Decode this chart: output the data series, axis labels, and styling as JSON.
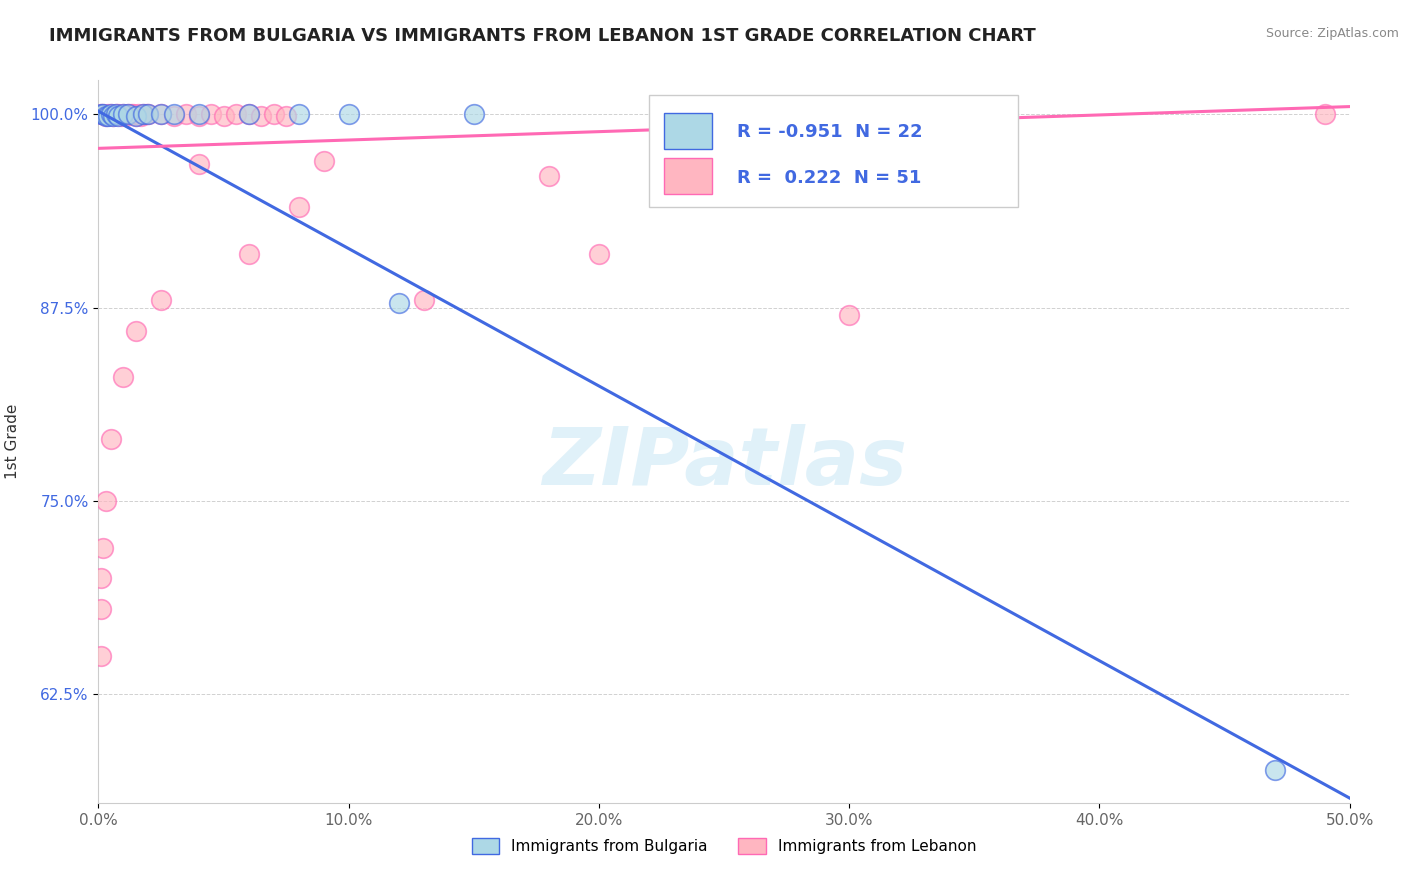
{
  "title": "IMMIGRANTS FROM BULGARIA VS IMMIGRANTS FROM LEBANON 1ST GRADE CORRELATION CHART",
  "source": "Source: ZipAtlas.com",
  "ylabel": "1st Grade",
  "legend_bottom": [
    "Immigrants from Bulgaria",
    "Immigrants from Lebanon"
  ],
  "r_bulgaria": -0.951,
  "n_bulgaria": 22,
  "r_lebanon": 0.222,
  "n_lebanon": 51,
  "xlim": [
    0.0,
    0.5
  ],
  "ylim": [
    0.555,
    1.022
  ],
  "xticks": [
    0.0,
    0.1,
    0.2,
    0.3,
    0.4,
    0.5
  ],
  "xtick_labels": [
    "0.0%",
    "10.0%",
    "20.0%",
    "30.0%",
    "40.0%",
    "50.0%"
  ],
  "yticks": [
    0.625,
    0.75,
    0.875,
    1.0
  ],
  "ytick_labels": [
    "62.5%",
    "75.0%",
    "87.5%",
    "100.0%"
  ],
  "color_bulgaria": "#ADD8E6",
  "color_lebanon": "#FFB6C1",
  "line_color_bulgaria": "#4169E1",
  "line_color_lebanon": "#FF69B4",
  "watermark": "ZIPatlas",
  "background_color": "#FFFFFF",
  "bulgaria_points": [
    [
      0.001,
      1.0
    ],
    [
      0.002,
      1.0
    ],
    [
      0.003,
      0.999
    ],
    [
      0.004,
      0.999
    ],
    [
      0.005,
      1.0
    ],
    [
      0.006,
      0.999
    ],
    [
      0.007,
      1.0
    ],
    [
      0.008,
      0.999
    ],
    [
      0.01,
      1.0
    ],
    [
      0.012,
      1.0
    ],
    [
      0.015,
      0.999
    ],
    [
      0.018,
      1.0
    ],
    [
      0.02,
      1.0
    ],
    [
      0.025,
      1.0
    ],
    [
      0.03,
      1.0
    ],
    [
      0.04,
      1.0
    ],
    [
      0.06,
      1.0
    ],
    [
      0.08,
      1.0
    ],
    [
      0.1,
      1.0
    ],
    [
      0.15,
      1.0
    ],
    [
      0.12,
      0.878
    ],
    [
      0.47,
      0.576
    ]
  ],
  "lebanon_points": [
    [
      0.001,
      1.0
    ],
    [
      0.002,
      1.0
    ],
    [
      0.003,
      0.999
    ],
    [
      0.004,
      1.0
    ],
    [
      0.005,
      1.0
    ],
    [
      0.006,
      0.999
    ],
    [
      0.007,
      1.0
    ],
    [
      0.008,
      1.0
    ],
    [
      0.009,
      0.999
    ],
    [
      0.01,
      1.0
    ],
    [
      0.011,
      0.999
    ],
    [
      0.012,
      1.0
    ],
    [
      0.013,
      1.0
    ],
    [
      0.014,
      1.0
    ],
    [
      0.015,
      0.999
    ],
    [
      0.016,
      1.0
    ],
    [
      0.017,
      0.999
    ],
    [
      0.018,
      1.0
    ],
    [
      0.019,
      1.0
    ],
    [
      0.02,
      1.0
    ],
    [
      0.025,
      1.0
    ],
    [
      0.03,
      0.999
    ],
    [
      0.035,
      1.0
    ],
    [
      0.04,
      0.999
    ],
    [
      0.045,
      1.0
    ],
    [
      0.05,
      0.999
    ],
    [
      0.055,
      1.0
    ],
    [
      0.06,
      1.0
    ],
    [
      0.065,
      0.999
    ],
    [
      0.07,
      1.0
    ],
    [
      0.075,
      0.999
    ],
    [
      0.04,
      0.968
    ],
    [
      0.09,
      0.97
    ],
    [
      0.08,
      0.94
    ],
    [
      0.18,
      0.96
    ],
    [
      0.06,
      0.91
    ],
    [
      0.2,
      0.91
    ],
    [
      0.025,
      0.88
    ],
    [
      0.13,
      0.88
    ],
    [
      0.015,
      0.86
    ],
    [
      0.3,
      0.87
    ],
    [
      0.01,
      0.83
    ],
    [
      0.005,
      0.79
    ],
    [
      0.003,
      0.75
    ],
    [
      0.35,
      1.0
    ],
    [
      0.28,
      0.999
    ],
    [
      0.49,
      1.0
    ],
    [
      0.002,
      0.72
    ],
    [
      0.001,
      0.7
    ],
    [
      0.001,
      0.68
    ],
    [
      0.001,
      0.65
    ]
  ],
  "blue_line": [
    [
      0.0,
      1.002
    ],
    [
      0.5,
      0.558
    ]
  ],
  "pink_line": [
    [
      0.0,
      0.978
    ],
    [
      0.5,
      1.005
    ]
  ]
}
